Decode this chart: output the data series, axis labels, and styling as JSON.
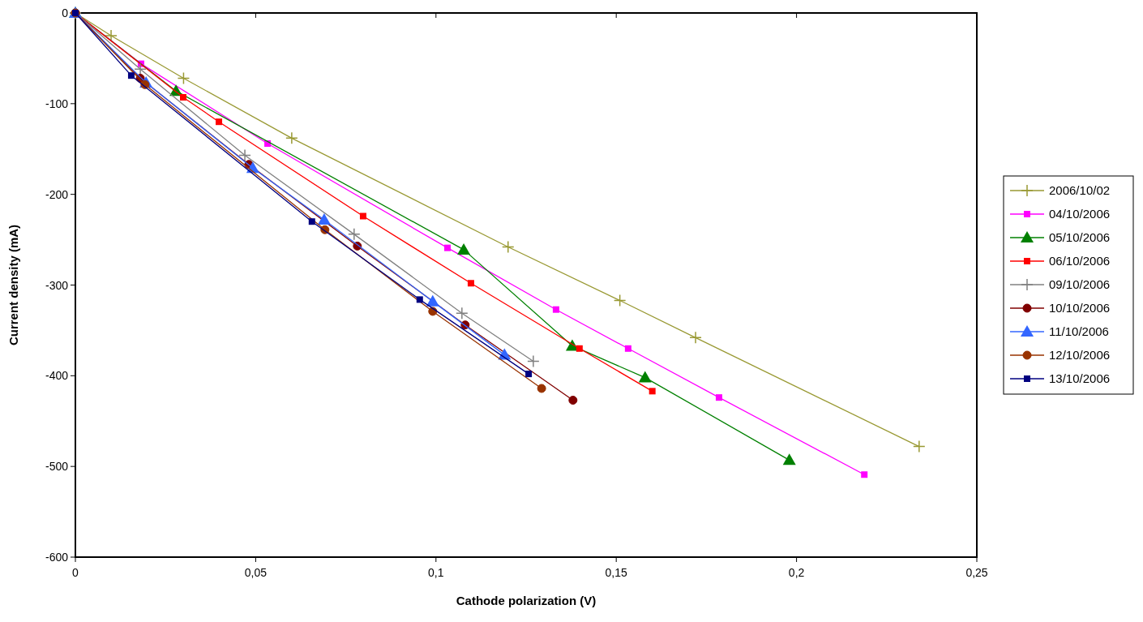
{
  "chart_data": {
    "type": "line",
    "xlabel": "Cathode polarization (V)",
    "ylabel": "Current density (mA)",
    "xlim": [
      0,
      0.25
    ],
    "xticks": [
      0,
      {
        "value": 0.05,
        "label": "0,05"
      },
      {
        "value": 0.1,
        "label": "0,1"
      },
      {
        "value": 0.15,
        "label": "0,15"
      },
      {
        "value": 0.2,
        "label": "0,2"
      },
      {
        "value": 0.25,
        "label": "0,25"
      }
    ],
    "ylim": [
      -600,
      0
    ],
    "yticks": [
      -600,
      -500,
      -400,
      -300,
      -200,
      -100,
      0
    ],
    "grid": false,
    "legend": "right",
    "series": [
      {
        "name": "2006/10/02",
        "color": "#999933",
        "marker": "cross",
        "x": [
          0,
          0.0099,
          0.03,
          0.06,
          0.12,
          0.151,
          0.172,
          0.234
        ],
        "values": [
          0,
          -25,
          -72,
          -138,
          -258,
          -317,
          -358,
          -478
        ]
      },
      {
        "name": "04/10/2006",
        "color": "#ff00ff",
        "marker": "square",
        "x": [
          0,
          0.0182,
          0.0533,
          0.1032,
          0.1333,
          0.1533,
          0.1785,
          0.2188
        ],
        "values": [
          0,
          -56,
          -144,
          -259,
          -327,
          -370,
          -424,
          -509
        ]
      },
      {
        "name": "05/10/2006",
        "color": "#008000",
        "marker": "triangle",
        "x": [
          0,
          0.0279,
          0.1077,
          0.1378,
          0.158,
          0.198
        ],
        "values": [
          0,
          -86,
          -261,
          -367,
          -402,
          -493
        ]
      },
      {
        "name": "06/10/2006",
        "color": "#ff0000",
        "marker": "square",
        "x": [
          0,
          0.0299,
          0.0398,
          0.0798,
          0.1097,
          0.1398,
          0.16
        ],
        "values": [
          0,
          -93,
          -120,
          -224,
          -298,
          -370,
          -417
        ]
      },
      {
        "name": "09/10/2006",
        "color": "#808080",
        "marker": "cross",
        "x": [
          0,
          0.018,
          0.047,
          0.0773,
          0.1072,
          0.127
        ],
        "values": [
          0,
          -62,
          -157,
          -244,
          -331,
          -384
        ]
      },
      {
        "name": "10/10/2006",
        "color": "#800000",
        "marker": "circle",
        "x": [
          0,
          0.018,
          0.0481,
          0.0782,
          0.1081,
          0.138
        ],
        "values": [
          0,
          -72,
          -167,
          -257,
          -344,
          -427
        ]
      },
      {
        "name": "11/10/2006",
        "color": "#3366ff",
        "marker": "triangle",
        "x": [
          0,
          0.0196,
          0.0492,
          0.069,
          0.0991,
          0.119
        ],
        "values": [
          0,
          -77,
          -171,
          -228,
          -318,
          -377
        ]
      },
      {
        "name": "12/10/2006",
        "color": "#993300",
        "marker": "circle",
        "x": [
          0,
          0.0193,
          0.0692,
          0.0991,
          0.1293
        ],
        "values": [
          0,
          -79,
          -239,
          -329,
          -414
        ]
      },
      {
        "name": "13/10/2006",
        "color": "#000080",
        "marker": "square",
        "x": [
          0,
          0.0155,
          0.0656,
          0.0955,
          0.1257
        ],
        "values": [
          0,
          -69,
          -230,
          -316,
          -398
        ]
      }
    ]
  }
}
